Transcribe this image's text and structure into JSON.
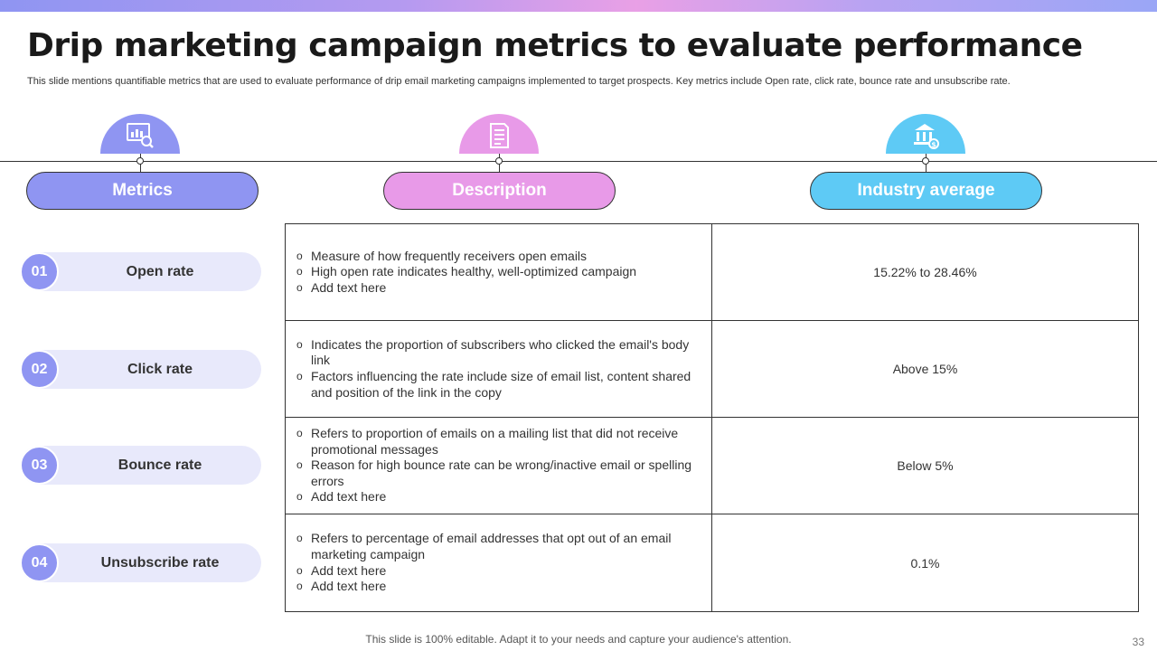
{
  "slide": {
    "title": "Drip marketing campaign metrics to evaluate performance",
    "subtitle": "This slide mentions quantifiable metrics that are used to evaluate performance of drip email marketing campaigns implemented  to target prospects. Key metrics include Open rate, click rate, bounce rate and unsubscribe rate.",
    "footer": "This slide is 100% editable. Adapt it to your needs and capture your audience's attention.",
    "page_number": "33"
  },
  "colors": {
    "purple": "#8f95f2",
    "pink": "#e89ae8",
    "blue": "#5ecaf5",
    "light_row": "#e8e9fb"
  },
  "headers": [
    {
      "label": "Metrics",
      "icon": "analytics-chart-icon",
      "color": "#8f95f2"
    },
    {
      "label": "Description",
      "icon": "document-icon",
      "color": "#e89ae8"
    },
    {
      "label": "Industry average",
      "icon": "bank-dollar-icon",
      "color": "#5ecaf5"
    }
  ],
  "rows": [
    {
      "num": "01",
      "metric": "Open rate",
      "description": [
        "Measure of how frequently receivers open emails",
        "High open rate indicates healthy, well-optimized campaign",
        "Add text here"
      ],
      "average": "15.22% to 28.46%"
    },
    {
      "num": "02",
      "metric": "Click rate",
      "description": [
        "Indicates the proportion of subscribers who clicked the email's body link",
        "Factors influencing  the rate include size of email list, content shared and position of the link in the copy"
      ],
      "average": "Above 15%"
    },
    {
      "num": "03",
      "metric": "Bounce rate",
      "description": [
        "Refers to proportion of emails on a mailing list that did not receive promotional messages",
        "Reason for high bounce rate can be wrong/inactive email or spelling errors",
        "Add text here"
      ],
      "average": "Below 5%"
    },
    {
      "num": "04",
      "metric": "Unsubscribe rate",
      "description": [
        "Refers to percentage of email addresses that opt out of an email marketing campaign",
        "Add text here",
        "Add text here"
      ],
      "average": "0.1%"
    }
  ]
}
